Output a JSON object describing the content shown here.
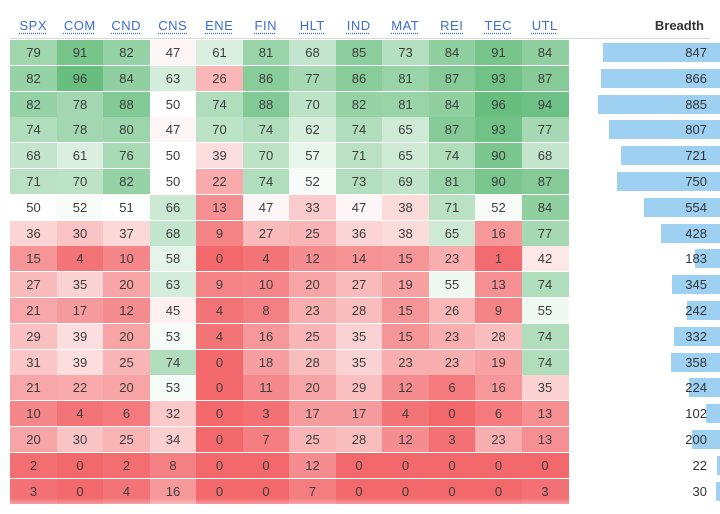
{
  "columns": [
    "SPX",
    "COM",
    "CND",
    "CNS",
    "ENE",
    "FIN",
    "HLT",
    "IND",
    "MAT",
    "REI",
    "TEC",
    "UTL"
  ],
  "breadth_header": "Breadth",
  "rows": [
    [
      79,
      91,
      82,
      47,
      61,
      81,
      68,
      85,
      73,
      84,
      91,
      84
    ],
    [
      82,
      96,
      84,
      63,
      26,
      86,
      77,
      86,
      81,
      87,
      93,
      87
    ],
    [
      82,
      78,
      88,
      50,
      74,
      88,
      70,
      82,
      81,
      84,
      96,
      94
    ],
    [
      74,
      78,
      80,
      47,
      70,
      74,
      62,
      74,
      65,
      87,
      93,
      77
    ],
    [
      68,
      61,
      76,
      50,
      39,
      70,
      57,
      71,
      65,
      74,
      90,
      68
    ],
    [
      71,
      70,
      82,
      50,
      22,
      74,
      52,
      73,
      69,
      81,
      90,
      87
    ],
    [
      50,
      52,
      51,
      66,
      13,
      47,
      33,
      47,
      38,
      71,
      52,
      84
    ],
    [
      36,
      30,
      37,
      68,
      9,
      27,
      25,
      36,
      38,
      65,
      16,
      77
    ],
    [
      15,
      4,
      10,
      58,
      0,
      4,
      12,
      14,
      15,
      23,
      1,
      42
    ],
    [
      27,
      35,
      20,
      63,
      9,
      10,
      20,
      27,
      19,
      55,
      13,
      74
    ],
    [
      21,
      17,
      12,
      45,
      4,
      8,
      23,
      28,
      15,
      26,
      9,
      55
    ],
    [
      29,
      39,
      20,
      53,
      4,
      16,
      25,
      35,
      15,
      23,
      28,
      74
    ],
    [
      31,
      39,
      25,
      74,
      0,
      18,
      28,
      35,
      23,
      23,
      19,
      74
    ],
    [
      21,
      22,
      20,
      53,
      0,
      11,
      20,
      29,
      12,
      6,
      16,
      35
    ],
    [
      10,
      4,
      6,
      32,
      0,
      3,
      17,
      17,
      4,
      0,
      6,
      13
    ],
    [
      20,
      30,
      25,
      34,
      0,
      7,
      25,
      28,
      12,
      3,
      23,
      13
    ],
    [
      2,
      0,
      2,
      8,
      0,
      0,
      12,
      0,
      0,
      0,
      0,
      0
    ],
    [
      3,
      0,
      4,
      16,
      0,
      0,
      7,
      0,
      0,
      0,
      0,
      3
    ]
  ],
  "breadth": [
    847,
    866,
    885,
    807,
    721,
    750,
    554,
    428,
    183,
    345,
    242,
    332,
    358,
    224,
    102,
    200,
    22,
    30
  ],
  "colors": {
    "high": "#5ab873",
    "mid": "#ffffff",
    "low": "#f2686b",
    "bar": "#9dd0f1",
    "header_link": "#3a6fd0"
  }
}
